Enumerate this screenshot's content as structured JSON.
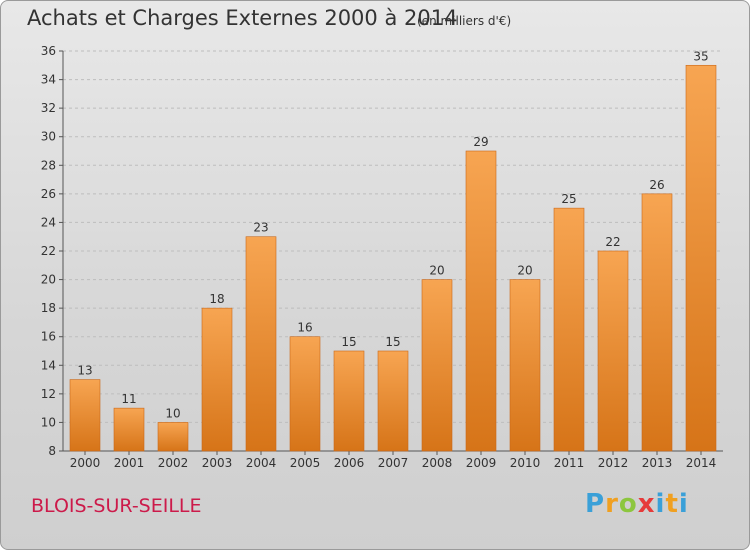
{
  "header": {
    "title": "Achats et Charges Externes 2000 à 2014",
    "subtitle": "(en milliers d'€)"
  },
  "footer": {
    "place": "BLOIS-SUR-SEILLE",
    "logo_text": "Proxiti",
    "logo_letters": [
      "P",
      "r",
      "o",
      "x",
      "i",
      "t",
      "i"
    ]
  },
  "colors": {
    "bar_light": "#f7a552",
    "bar_dark": "#d67418",
    "text": "#333333",
    "place": "#cc1a4a"
  },
  "chart_data": {
    "type": "bar",
    "title": "Achats et Charges Externes 2000 à 2014",
    "subtitle": "(en milliers d'€)",
    "categories": [
      "2000",
      "2001",
      "2002",
      "2003",
      "2004",
      "2005",
      "2006",
      "2007",
      "2008",
      "2009",
      "2010",
      "2011",
      "2012",
      "2013",
      "2014"
    ],
    "values": [
      13,
      11,
      10,
      18,
      23,
      16,
      15,
      15,
      20,
      29,
      20,
      25,
      22,
      26,
      35
    ],
    "ylim": [
      8,
      36
    ],
    "yticks": [
      8,
      10,
      12,
      14,
      16,
      18,
      20,
      22,
      24,
      26,
      28,
      30,
      32,
      34,
      36
    ],
    "xlabel": "",
    "ylabel": "",
    "grid": true,
    "legend": false
  }
}
